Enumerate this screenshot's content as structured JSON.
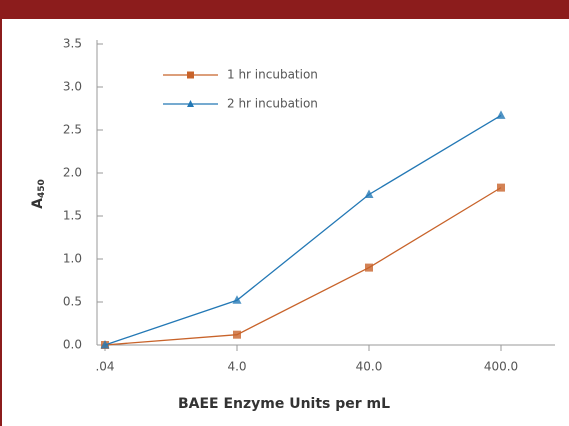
{
  "chart_data": {
    "type": "line",
    "x_label": "BAEE Enzyme Units per mL",
    "y_label_base": "A",
    "y_label_subscript": "450",
    "categories": [
      ".04",
      "4.0",
      "40.0",
      "400.0"
    ],
    "series": [
      {
        "name": "1 hr incubation",
        "color": "#c8632a",
        "marker": "square",
        "values": [
          0,
          0.12,
          0.9,
          1.83
        ]
      },
      {
        "name": "2 hr incubation",
        "color": "#2378b5",
        "marker": "triangle",
        "values": [
          0,
          0.52,
          1.75,
          2.67
        ]
      }
    ],
    "ylim": [
      0,
      3.5
    ],
    "yticks": [
      {
        "value": 0,
        "label": "0.0"
      },
      0.5,
      {
        "value": 1,
        "label": "1.0"
      },
      1.5,
      {
        "value": 2,
        "label": "2.0"
      },
      2.5,
      {
        "value": 3,
        "label": "3.0"
      },
      3.5
    ]
  }
}
